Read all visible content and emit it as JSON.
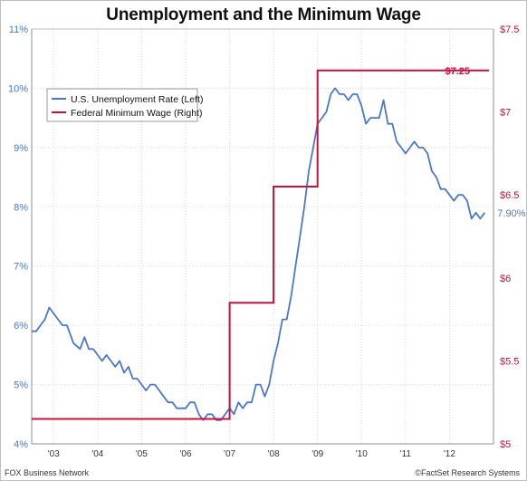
{
  "chart_data": {
    "type": "line",
    "title": "Unemployment and the Minimum Wage",
    "x_tick_labels": [
      "'03",
      "'04",
      "'05",
      "'06",
      "'07",
      "'08",
      "'09",
      "'10",
      "'11",
      "'12"
    ],
    "x_ticks": [
      2003,
      2004,
      2005,
      2006,
      2007,
      2008,
      2009,
      2010,
      2011,
      2012
    ],
    "xlim": [
      2002.5,
      2013.0
    ],
    "left_axis": {
      "ylim": [
        4,
        11
      ],
      "tick_labels": [
        "4%",
        "5%",
        "6%",
        "7%",
        "8%",
        "9%",
        "10%",
        "11%"
      ],
      "ticks": [
        4,
        5,
        6,
        7,
        8,
        9,
        10,
        11
      ],
      "color": "#4a78c8"
    },
    "right_axis": {
      "ylim": [
        5,
        7.5
      ],
      "tick_labels": [
        "$5",
        "$5.5",
        "$6",
        "$6.5",
        "$7",
        "$7.5"
      ],
      "ticks": [
        5,
        5.5,
        6,
        6.5,
        7,
        7.5
      ],
      "color": "#c8103c"
    },
    "legend": {
      "placement": "top-left"
    },
    "grid": true,
    "series": [
      {
        "name": "U.S. Unemployment Rate (Left)",
        "axis": "left",
        "color": "#4a78c8",
        "end_label": "7.90%",
        "x": [
          2002.5,
          2002.6,
          2002.7,
          2002.8,
          2002.9,
          2003.0,
          2003.1,
          2003.2,
          2003.3,
          2003.45,
          2003.6,
          2003.7,
          2003.8,
          2003.9,
          2004.0,
          2004.1,
          2004.2,
          2004.3,
          2004.4,
          2004.5,
          2004.6,
          2004.7,
          2004.8,
          2004.9,
          2005.0,
          2005.1,
          2005.2,
          2005.3,
          2005.4,
          2005.5,
          2005.6,
          2005.7,
          2005.8,
          2005.9,
          2006.0,
          2006.1,
          2006.2,
          2006.3,
          2006.4,
          2006.5,
          2006.6,
          2006.7,
          2006.8,
          2006.9,
          2007.0,
          2007.1,
          2007.2,
          2007.3,
          2007.4,
          2007.5,
          2007.6,
          2007.7,
          2007.8,
          2007.9,
          2008.0,
          2008.1,
          2008.2,
          2008.3,
          2008.4,
          2008.5,
          2008.6,
          2008.7,
          2008.8,
          2008.9,
          2009.0,
          2009.1,
          2009.2,
          2009.3,
          2009.4,
          2009.5,
          2009.6,
          2009.7,
          2009.8,
          2009.9,
          2010.0,
          2010.1,
          2010.2,
          2010.3,
          2010.4,
          2010.5,
          2010.6,
          2010.7,
          2010.8,
          2010.9,
          2011.0,
          2011.1,
          2011.2,
          2011.3,
          2011.4,
          2011.5,
          2011.6,
          2011.7,
          2011.8,
          2011.9,
          2012.0,
          2012.1,
          2012.2,
          2012.3,
          2012.4,
          2012.5,
          2012.6,
          2012.7,
          2012.8
        ],
        "values": [
          5.9,
          5.9,
          6.0,
          6.1,
          6.3,
          6.2,
          6.1,
          6.0,
          6.0,
          5.7,
          5.6,
          5.8,
          5.6,
          5.6,
          5.5,
          5.4,
          5.5,
          5.4,
          5.3,
          5.4,
          5.2,
          5.3,
          5.1,
          5.1,
          5.0,
          4.9,
          5.0,
          5.0,
          4.9,
          4.8,
          4.7,
          4.7,
          4.6,
          4.6,
          4.6,
          4.7,
          4.7,
          4.5,
          4.4,
          4.5,
          4.5,
          4.4,
          4.4,
          4.5,
          4.6,
          4.5,
          4.7,
          4.6,
          4.7,
          4.7,
          5.0,
          5.0,
          4.8,
          5.0,
          5.4,
          5.7,
          6.1,
          6.1,
          6.5,
          7.0,
          7.5,
          8.0,
          8.6,
          9.0,
          9.4,
          9.5,
          9.6,
          9.9,
          10.0,
          9.9,
          9.9,
          9.8,
          9.9,
          9.9,
          9.7,
          9.4,
          9.5,
          9.5,
          9.5,
          9.8,
          9.4,
          9.4,
          9.1,
          9.0,
          8.9,
          9.0,
          9.1,
          9.0,
          9.0,
          8.9,
          8.6,
          8.5,
          8.3,
          8.3,
          8.2,
          8.1,
          8.2,
          8.2,
          8.1,
          7.8,
          7.9,
          7.8,
          7.9
        ]
      },
      {
        "name": "Federal Minimum Wage (Right)",
        "axis": "right",
        "color": "#c8103c",
        "end_label": "$7.25",
        "step_x": [
          2002.5,
          2007.0,
          2008.0,
          2009.0,
          2012.9
        ],
        "step_values": [
          5.15,
          5.85,
          6.55,
          7.25,
          7.25
        ]
      }
    ]
  },
  "footer": {
    "left": "FOX Business Network",
    "right": "©FactSet Research Systems"
  }
}
